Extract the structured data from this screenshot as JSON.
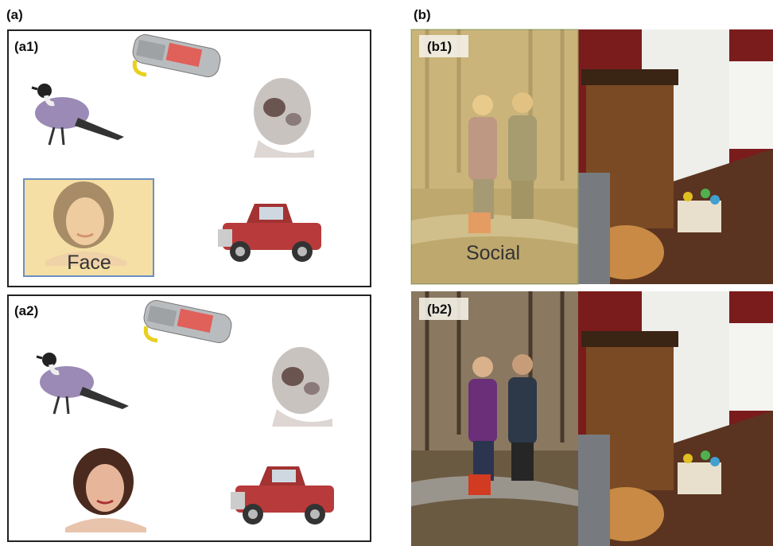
{
  "panel_a": {
    "label": "(a)",
    "a1": {
      "label": "(a1)",
      "highlight": "Face"
    },
    "a2": {
      "label": "(a2)"
    }
  },
  "panel_b": {
    "label": "(b)",
    "b1": {
      "label": "(b1)",
      "highlight": "Social"
    },
    "b2": {
      "label": "(b2)"
    }
  }
}
